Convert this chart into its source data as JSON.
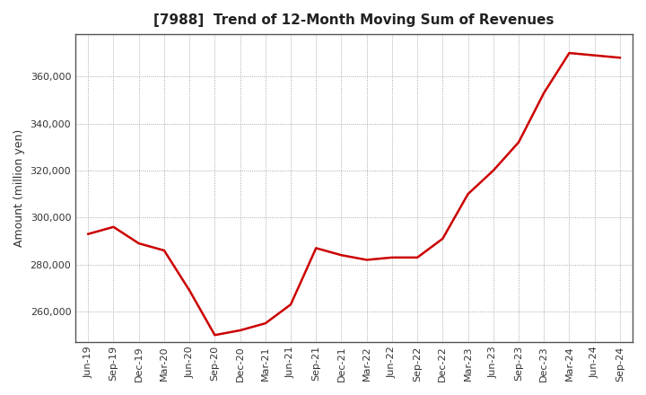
{
  "title": "[7988]  Trend of 12-Month Moving Sum of Revenues",
  "ylabel": "Amount (million yen)",
  "line_color": "#cc0000",
  "background_color": "#ffffff",
  "plot_bg_color": "#ffffff",
  "grid_color": "#888888",
  "x_labels": [
    "Jun-19",
    "Sep-19",
    "Dec-19",
    "Mar-20",
    "Jun-20",
    "Sep-20",
    "Dec-20",
    "Mar-21",
    "Jun-21",
    "Sep-21",
    "Dec-21",
    "Mar-22",
    "Jun-22",
    "Sep-22",
    "Dec-22",
    "Mar-23",
    "Jun-23",
    "Sep-23",
    "Dec-23",
    "Mar-24",
    "Jun-24",
    "Sep-24"
  ],
  "values": [
    293000,
    296000,
    289000,
    286000,
    269000,
    250000,
    252000,
    255000,
    263000,
    287000,
    284000,
    282000,
    283000,
    283000,
    291000,
    310000,
    320000,
    332000,
    353000,
    370000,
    369000,
    368000
  ],
  "ylim": [
    247000,
    378000
  ],
  "yticks": [
    260000,
    280000,
    300000,
    320000,
    340000,
    360000
  ],
  "title_fontsize": 11,
  "axis_fontsize": 9,
  "tick_fontsize": 8,
  "line_width": 1.8,
  "spine_color": "#555555"
}
